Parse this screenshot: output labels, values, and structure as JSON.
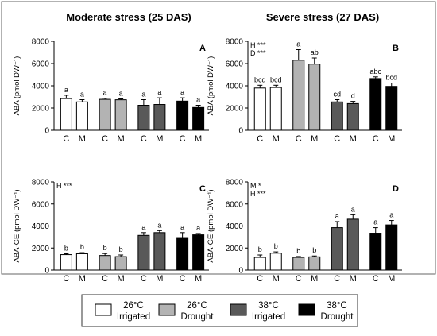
{
  "figure": {
    "col_titles": [
      "Moderate stress (25 DAS)",
      "Severe stress (27 DAS)"
    ]
  },
  "legend": [
    {
      "line1": "26°C",
      "line2": "Irrigated",
      "color": "#ffffff"
    },
    {
      "line1": "26°C",
      "line2": "Drought",
      "color": "#b3b3b3"
    },
    {
      "line1": "38°C",
      "line2": "Irrigated",
      "color": "#595959"
    },
    {
      "line1": "38°C",
      "line2": "Drought",
      "color": "#000000"
    }
  ],
  "chart_data": [
    {
      "type": "bar",
      "panel": "A",
      "ylabel": "ABA (pmol DW⁻¹)",
      "ylim": [
        0,
        8000
      ],
      "yticks": [
        0,
        2000,
        4000,
        6000,
        8000
      ],
      "ytick_labels": [
        "0",
        "2000",
        "4000",
        "6000",
        "8000"
      ],
      "categories": [
        "C",
        "M",
        "C",
        "M",
        "C",
        "M",
        "C",
        "M"
      ],
      "values": [
        2850,
        2550,
        2780,
        2740,
        2250,
        2320,
        2620,
        2050
      ],
      "errors": [
        300,
        200,
        100,
        80,
        500,
        600,
        300,
        200
      ],
      "letters": [
        "a",
        "a",
        "a",
        "a",
        "a",
        "a",
        "a",
        "a"
      ],
      "annotations": []
    },
    {
      "type": "bar",
      "panel": "B",
      "ylabel": "ABA (pmol DW⁻¹)",
      "ylim": [
        0,
        8000
      ],
      "yticks": [
        0,
        2000,
        4000,
        6000,
        8000
      ],
      "ytick_labels": [
        "0",
        "2000",
        "4000",
        "6000",
        "8000"
      ],
      "categories": [
        "C",
        "M",
        "C",
        "M",
        "C",
        "M",
        "C",
        "M"
      ],
      "values": [
        3800,
        3850,
        6300,
        5950,
        2550,
        2400,
        4650,
        3950
      ],
      "errors": [
        250,
        200,
        950,
        550,
        200,
        200,
        150,
        300
      ],
      "letters": [
        "bcd",
        "bcd",
        "a",
        "ab",
        "cd",
        "d",
        "abc",
        "bcd"
      ],
      "annotations": [
        "H ***",
        "D ***"
      ]
    },
    {
      "type": "bar",
      "panel": "C",
      "ylabel": "ABA-GE (pmol DW⁻¹)",
      "ylim": [
        0,
        8000
      ],
      "yticks": [
        0,
        2000,
        4000,
        6000,
        8000
      ],
      "ytick_labels": [
        "0",
        "2000",
        "4000",
        "6000",
        "8000"
      ],
      "categories": [
        "C",
        "M",
        "C",
        "M",
        "C",
        "M",
        "C",
        "M"
      ],
      "values": [
        1400,
        1480,
        1320,
        1220,
        3150,
        3400,
        2950,
        3200
      ],
      "errors": [
        80,
        100,
        180,
        150,
        250,
        180,
        450,
        120
      ],
      "letters": [
        "b",
        "b",
        "b",
        "b",
        "a",
        "a",
        "a",
        "a"
      ],
      "annotations": [
        "H ***"
      ]
    },
    {
      "type": "bar",
      "panel": "D",
      "ylabel": "ABA-GE (pmol DW⁻¹)",
      "ylim": [
        0,
        8000
      ],
      "yticks": [
        0,
        2000,
        4000,
        6000,
        8000
      ],
      "ytick_labels": [
        "0",
        "2000",
        "4000",
        "6000",
        "8000"
      ],
      "categories": [
        "C",
        "M",
        "C",
        "M",
        "C",
        "M",
        "C",
        "M"
      ],
      "values": [
        1150,
        1530,
        1150,
        1200,
        3850,
        4620,
        3350,
        4100
      ],
      "errors": [
        220,
        120,
        80,
        80,
        550,
        400,
        500,
        400
      ],
      "letters": [
        "b",
        "b",
        "b",
        "b",
        "a",
        "a",
        "a",
        "a"
      ],
      "annotations": [
        "M *",
        "H ***"
      ]
    }
  ]
}
